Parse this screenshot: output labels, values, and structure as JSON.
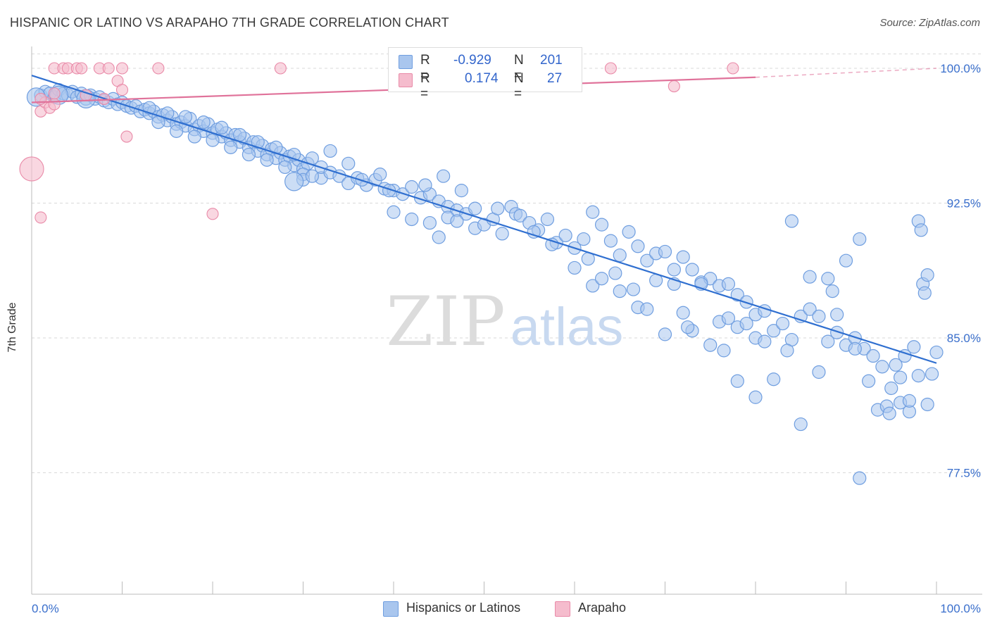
{
  "title": "HISPANIC OR LATINO VS ARAPAHO 7TH GRADE CORRELATION CHART",
  "source": "Source: ZipAtlas.com",
  "watermark": {
    "zip": "ZIP",
    "atlas": "atlas"
  },
  "colors": {
    "blue_fill": "#a9c6ee",
    "blue_stroke": "#6f9ee0",
    "blue_line": "#2f6fd0",
    "pink_fill": "#f5bccd",
    "pink_stroke": "#e98aa8",
    "pink_line": "#e0729a",
    "tick_label": "#3a6fcc",
    "grid": "#d9d9d9"
  },
  "legend": {
    "rows": [
      {
        "r_label": "R =",
        "r_value": "-0.929",
        "n_label": "N =",
        "n_value": "201"
      },
      {
        "r_label": "R =",
        "r_value": "0.174",
        "n_label": "N =",
        "n_value": "27"
      }
    ]
  },
  "bottom_legend": [
    "Hispanics or Latinos",
    "Arapaho"
  ],
  "chart_data": {
    "type": "scatter",
    "title": "HISPANIC OR LATINO VS ARAPAHO 7TH GRADE CORRELATION CHART",
    "xlabel": "",
    "ylabel": "7th Grade",
    "xlim": [
      0,
      100
    ],
    "ylim": [
      70,
      100.8
    ],
    "x_tick_labels": [
      "0.0%",
      "100.0%"
    ],
    "y_ticks": [
      77.5,
      85.0,
      92.5,
      100.0
    ],
    "y_tick_labels": [
      "77.5%",
      "85.0%",
      "92.5%",
      "100.0%"
    ],
    "grid": true,
    "legend_position": "top-center",
    "series": [
      {
        "name": "Hispanics or Latinos",
        "r": -0.929,
        "n": 201,
        "trend": {
          "x": [
            0,
            100
          ],
          "y": [
            99.6,
            83.6
          ]
        },
        "points": [
          [
            1,
            98.5
          ],
          [
            1.5,
            98.7
          ],
          [
            2,
            98.6
          ],
          [
            2.5,
            98.4
          ],
          [
            3,
            98.8
          ],
          [
            3.5,
            98.6
          ],
          [
            4,
            98.5
          ],
          [
            4.5,
            98.7
          ],
          [
            5,
            98.4
          ],
          [
            5.5,
            98.6
          ],
          [
            6,
            98.3
          ],
          [
            6.5,
            98.5
          ],
          [
            7,
            98.3
          ],
          [
            7.5,
            98.4
          ],
          [
            8,
            98.2
          ],
          [
            8.5,
            98.1
          ],
          [
            9,
            98.3
          ],
          [
            9.5,
            98.0
          ],
          [
            10,
            98.1
          ],
          [
            10.5,
            97.9
          ],
          [
            11,
            97.8
          ],
          [
            11.5,
            97.9
          ],
          [
            12,
            97.6
          ],
          [
            12.5,
            97.7
          ],
          [
            13,
            97.5
          ],
          [
            13.5,
            97.6
          ],
          [
            14,
            97.3
          ],
          [
            14.5,
            97.4
          ],
          [
            15,
            97.1
          ],
          [
            15.5,
            97.3
          ],
          [
            16,
            96.9
          ],
          [
            16.5,
            97.0
          ],
          [
            17,
            96.8
          ],
          [
            17.5,
            97.2
          ],
          [
            18,
            96.6
          ],
          [
            18.5,
            96.8
          ],
          [
            19,
            96.5
          ],
          [
            19.5,
            96.9
          ],
          [
            20,
            96.4
          ],
          [
            20.5,
            96.6
          ],
          [
            21,
            96.2
          ],
          [
            21.5,
            96.4
          ],
          [
            22,
            96.0
          ],
          [
            22.5,
            96.3
          ],
          [
            23,
            95.9
          ],
          [
            23.5,
            96.1
          ],
          [
            24,
            95.6
          ],
          [
            24.5,
            95.9
          ],
          [
            25,
            95.4
          ],
          [
            25.5,
            95.7
          ],
          [
            26,
            95.2
          ],
          [
            26.5,
            95.5
          ],
          [
            27,
            95.0
          ],
          [
            27.5,
            95.3
          ],
          [
            28,
            94.9
          ],
          [
            28.5,
            95.1
          ],
          [
            29,
            94.6
          ],
          [
            29.5,
            94.9
          ],
          [
            30,
            94.4
          ],
          [
            30.5,
            94.7
          ],
          [
            14,
            97.0
          ],
          [
            16,
            96.5
          ],
          [
            18,
            96.2
          ],
          [
            20,
            96.0
          ],
          [
            22,
            95.6
          ],
          [
            24,
            95.2
          ],
          [
            26,
            94.9
          ],
          [
            28,
            94.5
          ],
          [
            30,
            94.1
          ],
          [
            32,
            93.9
          ],
          [
            13,
            97.8
          ],
          [
            15,
            97.5
          ],
          [
            17,
            97.3
          ],
          [
            19,
            97.0
          ],
          [
            21,
            96.7
          ],
          [
            23,
            96.3
          ],
          [
            25,
            95.9
          ],
          [
            27,
            95.6
          ],
          [
            29,
            95.2
          ],
          [
            31,
            95.0
          ],
          [
            30,
            93.8
          ],
          [
            31,
            94.0
          ],
          [
            32,
            94.5
          ],
          [
            33,
            94.2
          ],
          [
            34,
            94.0
          ],
          [
            35,
            93.6
          ],
          [
            36,
            93.9
          ],
          [
            37,
            93.5
          ],
          [
            38,
            93.8
          ],
          [
            39,
            93.3
          ],
          [
            40,
            93.2
          ],
          [
            41,
            93.0
          ],
          [
            42,
            93.4
          ],
          [
            43,
            92.8
          ],
          [
            44,
            93.0
          ],
          [
            45,
            92.6
          ],
          [
            46,
            92.3
          ],
          [
            47,
            92.1
          ],
          [
            48,
            91.9
          ],
          [
            49,
            92.2
          ],
          [
            40,
            92.0
          ],
          [
            42,
            91.6
          ],
          [
            44,
            91.4
          ],
          [
            45,
            90.6
          ],
          [
            46,
            91.7
          ],
          [
            47,
            91.5
          ],
          [
            49,
            91.1
          ],
          [
            50,
            91.3
          ],
          [
            51,
            91.6
          ],
          [
            52,
            90.8
          ],
          [
            53,
            92.3
          ],
          [
            53.5,
            91.9
          ],
          [
            54,
            91.8
          ],
          [
            55,
            91.4
          ],
          [
            56,
            91.0
          ],
          [
            57,
            91.6
          ],
          [
            58,
            90.3
          ],
          [
            59,
            90.7
          ],
          [
            60,
            90.0
          ],
          [
            61,
            90.5
          ],
          [
            62,
            92.0
          ],
          [
            63,
            91.3
          ],
          [
            64,
            90.4
          ],
          [
            65,
            89.6
          ],
          [
            66,
            90.9
          ],
          [
            67,
            90.1
          ],
          [
            68,
            89.3
          ],
          [
            69,
            89.7
          ],
          [
            70,
            89.8
          ],
          [
            71,
            88.8
          ],
          [
            72,
            89.5
          ],
          [
            73,
            88.8
          ],
          [
            74,
            88.1
          ],
          [
            75,
            88.3
          ],
          [
            76,
            87.9
          ],
          [
            77,
            88.0
          ],
          [
            78,
            87.4
          ],
          [
            79,
            87.0
          ],
          [
            80,
            86.3
          ],
          [
            81,
            86.5
          ],
          [
            60,
            88.9
          ],
          [
            62,
            87.9
          ],
          [
            63,
            88.3
          ],
          [
            65,
            87.6
          ],
          [
            67,
            86.7
          ],
          [
            68,
            86.6
          ],
          [
            70,
            85.2
          ],
          [
            72,
            86.4
          ],
          [
            73,
            85.4
          ],
          [
            74,
            88.0
          ],
          [
            75,
            84.6
          ],
          [
            76,
            85.9
          ],
          [
            77,
            86.1
          ],
          [
            78,
            85.6
          ],
          [
            79,
            85.8
          ],
          [
            80,
            85.0
          ],
          [
            81,
            84.8
          ],
          [
            82,
            85.4
          ],
          [
            83,
            85.8
          ],
          [
            84,
            84.9
          ],
          [
            85,
            86.2
          ],
          [
            86,
            86.6
          ],
          [
            87,
            86.2
          ],
          [
            88,
            84.8
          ],
          [
            89,
            86.3
          ],
          [
            90,
            84.6
          ],
          [
            91,
            85.0
          ],
          [
            92,
            84.4
          ],
          [
            93,
            84.0
          ],
          [
            94,
            83.4
          ],
          [
            95,
            82.2
          ],
          [
            96,
            81.4
          ],
          [
            97,
            80.9
          ],
          [
            98,
            82.9
          ],
          [
            99,
            81.3
          ],
          [
            100,
            84.2
          ],
          [
            97.5,
            84.5
          ],
          [
            96.5,
            84.0
          ],
          [
            95.5,
            83.5
          ],
          [
            99.5,
            83.0
          ],
          [
            69,
            88.2
          ],
          [
            71,
            88.0
          ],
          [
            72.5,
            85.6
          ],
          [
            76.5,
            84.3
          ],
          [
            78,
            82.6
          ],
          [
            80,
            81.7
          ],
          [
            82,
            82.7
          ],
          [
            83.5,
            84.3
          ],
          [
            85,
            80.2
          ],
          [
            87,
            83.1
          ],
          [
            89,
            85.3
          ],
          [
            91,
            84.4
          ],
          [
            92.5,
            82.6
          ],
          [
            93.5,
            81.0
          ],
          [
            94.5,
            81.2
          ],
          [
            94.8,
            80.8
          ],
          [
            96,
            82.8
          ],
          [
            97,
            81.5
          ],
          [
            91.5,
            77.2
          ],
          [
            88.5,
            87.6
          ],
          [
            84,
            91.5
          ],
          [
            86,
            88.4
          ],
          [
            88,
            88.3
          ],
          [
            90,
            89.3
          ],
          [
            91.5,
            90.5
          ],
          [
            98.5,
            88.0
          ],
          [
            98.7,
            87.5
          ],
          [
            99,
            88.5
          ],
          [
            98,
            91.5
          ],
          [
            98.3,
            91.0
          ],
          [
            33,
            95.4
          ],
          [
            35,
            94.7
          ],
          [
            36.5,
            93.8
          ],
          [
            38.5,
            94.1
          ],
          [
            39.5,
            93.2
          ],
          [
            43.5,
            93.5
          ],
          [
            45.5,
            94.0
          ],
          [
            51.5,
            92.2
          ],
          [
            55.5,
            90.9
          ],
          [
            57.5,
            90.2
          ],
          [
            61.5,
            89.4
          ],
          [
            64.5,
            88.6
          ],
          [
            66.5,
            87.7
          ],
          [
            47.5,
            93.2
          ]
        ],
        "big_points": [
          [
            0.5,
            98.4
          ],
          [
            3,
            98.5
          ],
          [
            6,
            98.3
          ],
          [
            29,
            93.7
          ]
        ]
      },
      {
        "name": "Arapaho",
        "r": 0.174,
        "n": 27,
        "trend": {
          "x": [
            0,
            80,
            100
          ],
          "y": [
            98.1,
            99.5,
            100.0
          ],
          "solid_until": 80
        },
        "points": [
          [
            2.5,
            100.0
          ],
          [
            3.5,
            100.0
          ],
          [
            4,
            100.0
          ],
          [
            5,
            100.0
          ],
          [
            5.5,
            100.0
          ],
          [
            7.5,
            100.0
          ],
          [
            8.5,
            100.0
          ],
          [
            10,
            100.0
          ],
          [
            14,
            100.0
          ],
          [
            27.5,
            100.0
          ],
          [
            64,
            100.0
          ],
          [
            77.5,
            100.0
          ],
          [
            9.5,
            99.3
          ],
          [
            10,
            98.8
          ],
          [
            1,
            97.6
          ],
          [
            1.5,
            98.1
          ],
          [
            2,
            97.8
          ],
          [
            2.5,
            98.0
          ],
          [
            1,
            98.3
          ],
          [
            2.5,
            98.6
          ],
          [
            6,
            98.5
          ],
          [
            8,
            98.3
          ],
          [
            10.5,
            96.2
          ],
          [
            1,
            91.7
          ],
          [
            20,
            91.9
          ],
          [
            71,
            99.0
          ]
        ],
        "big_points": [
          [
            0,
            94.4
          ]
        ]
      }
    ]
  }
}
